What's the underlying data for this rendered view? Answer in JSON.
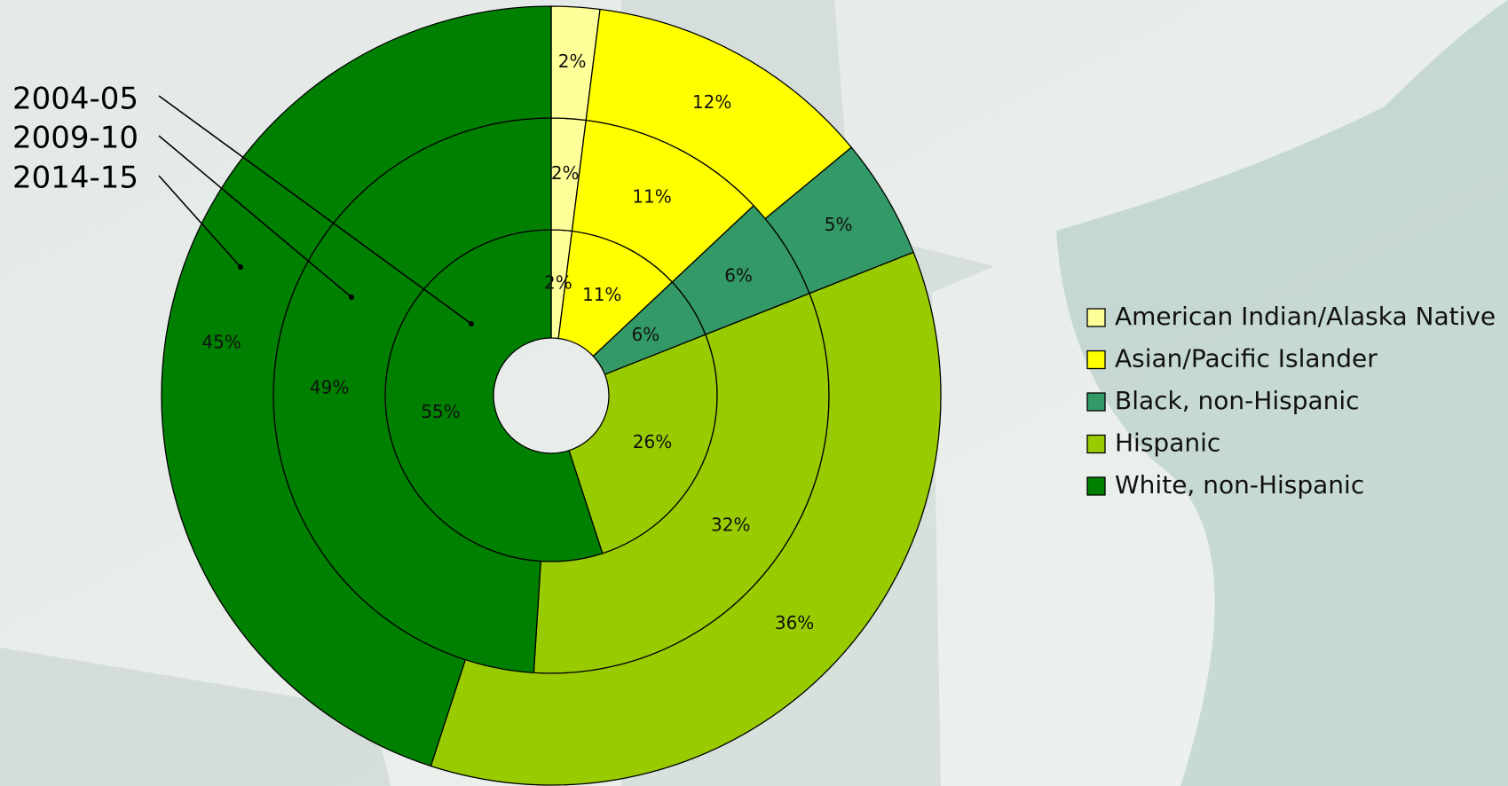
{
  "chart_data": {
    "type": "donut",
    "categories": [
      "American Indian/Alaska Native",
      "Asian/Pacific Islander",
      "Black, non-Hispanic",
      "Hispanic",
      "White, non-Hispanic"
    ],
    "colors": [
      "#ffff99",
      "#ffff00",
      "#339966",
      "#99cc00",
      "#008000"
    ],
    "series": [
      {
        "name": "2004-05",
        "values": [
          2,
          11,
          6,
          26,
          55
        ],
        "value_labels": [
          "2%",
          "11%",
          "6%",
          "26%",
          "55%"
        ]
      },
      {
        "name": "2009-10",
        "values": [
          2,
          11,
          6,
          32,
          49
        ],
        "value_labels": [
          "2%",
          "11%",
          "6%",
          "32%",
          "49%"
        ]
      },
      {
        "name": "2014-15",
        "values": [
          2,
          12,
          5,
          36,
          45
        ],
        "value_labels": [
          "2%",
          "12%",
          "5%",
          "36%",
          "45%"
        ]
      }
    ],
    "legend": "right"
  }
}
